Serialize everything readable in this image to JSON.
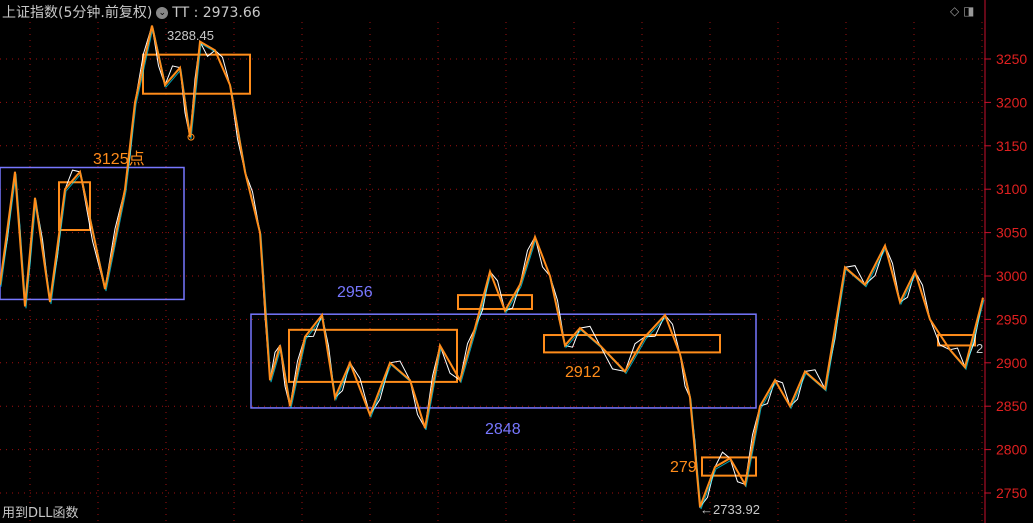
{
  "header": {
    "title": "上证指数(5分钟.前复权)",
    "indicator_label": "TT",
    "separator": ":",
    "indicator_value": "2973.66"
  },
  "toolbar": {
    "icons": [
      "diamond-icon",
      "panel-toggle-icon"
    ]
  },
  "footer": {
    "text": "用到DLL函数"
  },
  "colors": {
    "background": "#000000",
    "axis": "#c8102e",
    "grid": "#a01010",
    "price": "#ffffff",
    "price_alt": "#00e5ff",
    "indicator": "#ff8c1a",
    "zone_box": "#7777ff",
    "pattern_box": "#ff8c1a"
  },
  "chart_data": {
    "type": "line",
    "ylim": [
      2720,
      3290
    ],
    "yticks": [
      3250,
      3200,
      3150,
      3100,
      3050,
      3000,
      2950,
      2900,
      2850,
      2800,
      2750
    ],
    "grid": true,
    "series": [
      {
        "values": [
          2990,
          3120,
          2965,
          3090,
          2970,
          3100,
          3120,
          2985,
          3100,
          3200,
          3288.45,
          3220,
          3240,
          3160,
          3270,
          3260,
          3220,
          3120,
          3050,
          2880,
          2920,
          2850,
          2930,
          2955,
          2860,
          2900,
          2840,
          2900,
          2880,
          2825,
          2920,
          2880,
          2940,
          3005,
          2960,
          2990,
          3045,
          3000,
          2920,
          2940,
          2920,
          2890,
          2930,
          2955,
          2910,
          2860,
          2733.92,
          2780,
          2790,
          2760,
          2850,
          2880,
          2850,
          2890,
          2870,
          3010,
          2990,
          3035,
          2970,
          3005,
          2950,
          2915,
          2895,
          2975
        ]
      }
    ],
    "annotations": {
      "high": "3288.45",
      "low": "2733.92",
      "label_3125": "3125点",
      "label_2956": "2956",
      "label_2912": "2912",
      "label_2848": "2848",
      "label_279": "279",
      "right_marker": "2"
    },
    "zones": [
      {
        "top": 3125,
        "bottom": 2973
      },
      {
        "top": 2956,
        "bottom": 2848
      }
    ],
    "pattern_boxes": [
      {
        "top": 3255,
        "bottom": 3210
      },
      {
        "top": 3108,
        "bottom": 3053
      },
      {
        "top": 2938,
        "bottom": 2878
      },
      {
        "top": 2978,
        "bottom": 2962
      },
      {
        "top": 2932,
        "bottom": 2912
      },
      {
        "top": 2791,
        "bottom": 2770
      },
      {
        "top": 2932,
        "bottom": 2920
      }
    ]
  }
}
